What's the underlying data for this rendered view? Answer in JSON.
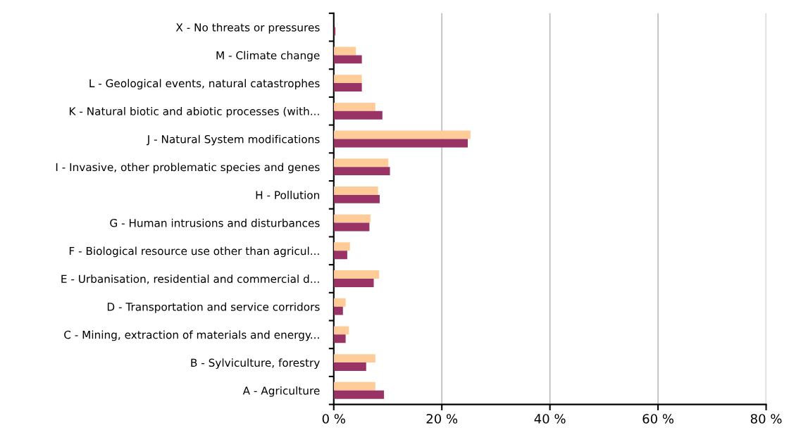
{
  "chart_data": {
    "type": "bar",
    "orientation": "horizontal",
    "categories": [
      "X - No threats or pressures",
      "M - Climate change",
      "L - Geological events, natural catastrophes",
      "K - Natural biotic and abiotic processes (with...",
      "J - Natural System modifications",
      "I - Invasive, other problematic species and genes",
      "H - Pollution",
      "G - Human intrusions and disturbances",
      "F - Biological resource use other than agricul...",
      "E - Urbanisation, residential and commercial d...",
      "D - Transportation and service corridors",
      "C - Mining, extraction of materials and energy...",
      "B - Sylviculture, forestry",
      "A - Agriculture"
    ],
    "series": [
      {
        "color": "#ffcc99",
        "values": [
          0,
          4.1,
          5.2,
          7.7,
          25.3,
          10.1,
          8.2,
          6.8,
          3.0,
          8.4,
          2.2,
          2.8,
          7.7,
          7.7
        ]
      },
      {
        "color": "#993366",
        "values": [
          0.3,
          5.2,
          5.2,
          9.0,
          24.8,
          10.4,
          8.5,
          6.6,
          2.5,
          7.4,
          1.7,
          2.2,
          6.0,
          9.3
        ]
      }
    ],
    "xlim": [
      0,
      80
    ],
    "xticks": [
      {
        "value": 0,
        "label": "0 %"
      },
      {
        "value": 20,
        "label": "20 %"
      },
      {
        "value": 40,
        "label": "40 %"
      },
      {
        "value": 60,
        "label": "60 %"
      },
      {
        "value": 80,
        "label": "80 %"
      }
    ],
    "grid": "x",
    "legend": false
  }
}
